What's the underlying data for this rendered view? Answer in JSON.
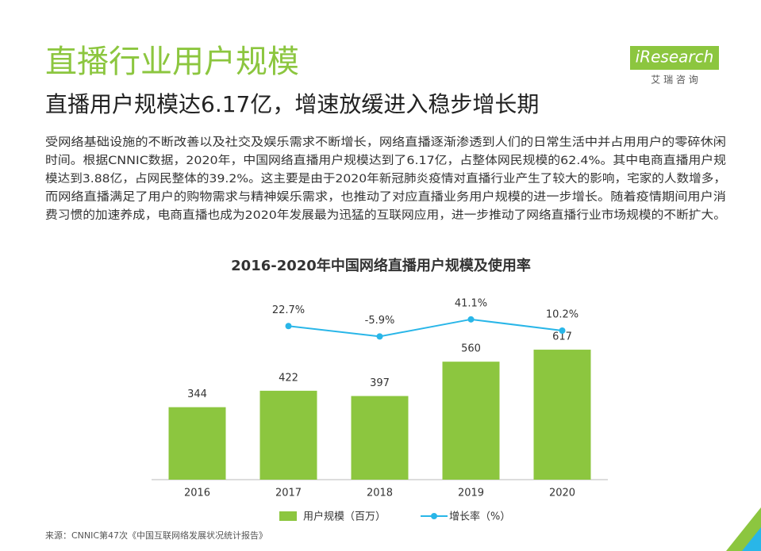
{
  "header": {
    "title": "直播行业用户规模",
    "subtitle": "直播用户规模达6.17亿，增速放缓进入稳步增长期"
  },
  "logo": {
    "name": "iResearch",
    "cn": "艾 瑞 咨 询"
  },
  "body": {
    "lines": [
      "受网络基础设施的不断改善以及社交及娱乐需求不断增长，网络直播逐渐渗透到人们的日常生活中并占用用户的零碎休闲",
      "时间。根据CNNIC数据，2020年，中国网络直播用户规模达到了6.17亿，占整体网民规模的62.4%。其中电商直播用户规",
      "模达到3.88亿，占网民整体的39.2%。这主要是由于2020年新冠肺炎疫情对直播行业产生了较大的影响，宅家的人数增多，",
      "而网络直播满足了用户的购物需求与精神娱乐需求，也推动了对应直播业务用户规模的进一步增长。随着疫情期间用户消",
      "费习惯的加速养成，电商直播也成为2020年发展最为迅猛的互联网应用，进一步推动了网络直播行业市场规模的不断扩大。"
    ]
  },
  "chart_data": {
    "type": "bar",
    "title": "2016-2020年中国网络直播用户规模及使用率",
    "categories": [
      "2016",
      "2017",
      "2018",
      "2019",
      "2020"
    ],
    "series": [
      {
        "name": "用户规模（百万）",
        "type": "bar",
        "color": "#8cc63f",
        "values": [
          344,
          422,
          397,
          560,
          617
        ]
      },
      {
        "name": "增长率（%）",
        "type": "line",
        "axis": "y2",
        "color": "#29b6e8",
        "values": [
          null,
          22.7,
          -5.9,
          41.1,
          10.2
        ],
        "value_labels": [
          null,
          "22.7%",
          "-5.9%",
          "41.1%",
          "10.2%"
        ]
      }
    ],
    "ylim": [
      0,
      700
    ],
    "y2lim": [
      -40,
      80
    ],
    "legend": "bottom"
  },
  "source": "来源：CNNIC第47次《中国互联网络发展状况统计报告》"
}
